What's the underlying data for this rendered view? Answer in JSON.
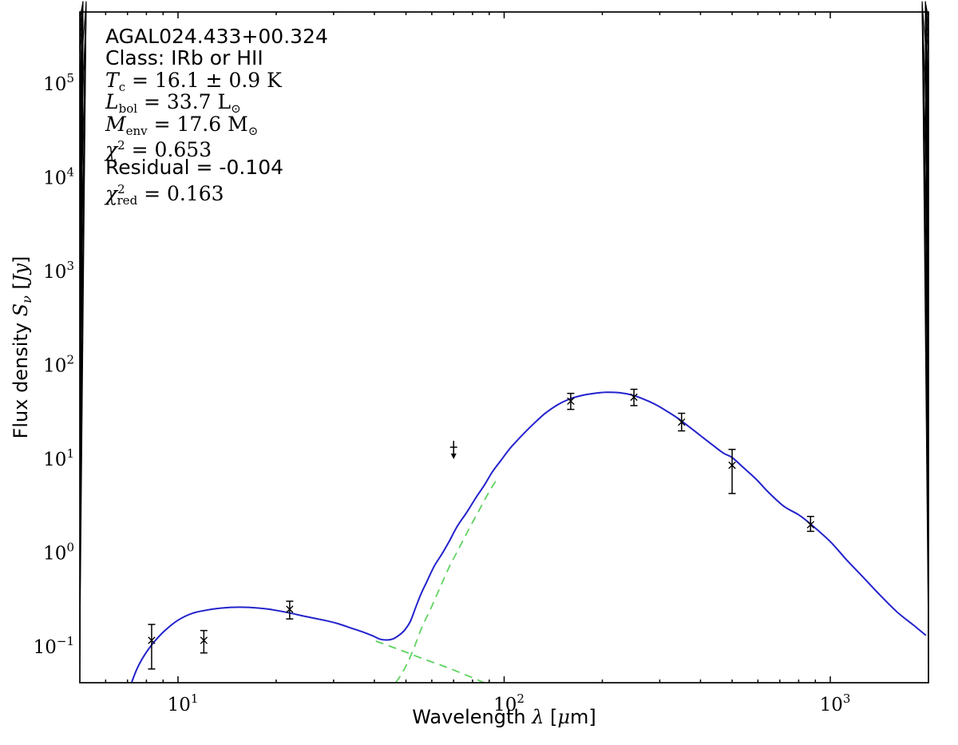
{
  "figure": {
    "background": "#ffffff",
    "frame_color": "#000000",
    "text_color": "#000000"
  },
  "chart_data": {
    "type": "line",
    "title": "",
    "xlabel": "Wavelength λ [μm]",
    "ylabel": "Flux density Sν [Jy]",
    "xlabel_parts": [
      {
        "t": "Wavelength ",
        "s": "p"
      },
      {
        "t": "λ",
        "s": "i"
      },
      {
        "t": " [",
        "s": "p"
      },
      {
        "t": "μ",
        "s": "i"
      },
      {
        "t": "m]",
        "s": "p"
      }
    ],
    "ylabel_parts": [
      {
        "t": "Flux density ",
        "s": "p"
      },
      {
        "t": "S",
        "s": "i"
      },
      {
        "t": "ν",
        "s": "isub"
      },
      {
        "t": " [",
        "s": "p"
      },
      {
        "t": "Jy",
        "s": "i"
      },
      {
        "t": "]",
        "s": "p"
      }
    ],
    "xscale": "log",
    "yscale": "log",
    "xlim": [
      5,
      2000
    ],
    "ylim": [
      0.0414,
      583000
    ],
    "x_major_ticks": [
      10,
      100,
      1000
    ],
    "y_major_ticks": [
      0.1,
      1,
      10,
      100,
      1000,
      10000,
      100000
    ],
    "grid": false,
    "legend": "none",
    "annotation_lines": [
      {
        "kind": "sans",
        "text": "AGAL024.433+00.324"
      },
      {
        "kind": "sans",
        "text": "Class: IRb or HII"
      },
      {
        "kind": "math",
        "var": "T",
        "sub": "c",
        "rhs": " = 16.1 ± 0.9 K"
      },
      {
        "kind": "math",
        "var": "L",
        "sub": "bol",
        "rhs": " = 33.7 L",
        "rhs_sub": "⊙"
      },
      {
        "kind": "math",
        "var": "M",
        "sub": "env",
        "rhs": " = 17.6 M",
        "rhs_sub": "⊙"
      },
      {
        "kind": "math",
        "var": "χ",
        "sup": "2",
        "rhs": " = 0.653"
      },
      {
        "kind": "sans",
        "text": "Residual = -0.104"
      },
      {
        "kind": "math",
        "var": "χ",
        "sup": "2",
        "sub": "red",
        "stacked": true,
        "rhs": " = 0.163"
      }
    ],
    "series": [
      {
        "name": "model-total",
        "label": "two-component model fit (total)",
        "color": "#2222cc",
        "dash": "none",
        "width": 2,
        "points": [
          [
            7.2,
            0.0414
          ],
          [
            7.5,
            0.059
          ],
          [
            7.9,
            0.082
          ],
          [
            8.4,
            0.11
          ],
          [
            9.1,
            0.148
          ],
          [
            10,
            0.192
          ],
          [
            11.1,
            0.228
          ],
          [
            12.8,
            0.252
          ],
          [
            14.5,
            0.263
          ],
          [
            16.5,
            0.263
          ],
          [
            18.9,
            0.252
          ],
          [
            21.5,
            0.233
          ],
          [
            24.5,
            0.211
          ],
          [
            28,
            0.192
          ],
          [
            31,
            0.176
          ],
          [
            34,
            0.158
          ],
          [
            37,
            0.143
          ],
          [
            39.5,
            0.131
          ],
          [
            41.5,
            0.121
          ],
          [
            43.5,
            0.118
          ],
          [
            45.5,
            0.121
          ],
          [
            47.5,
            0.132
          ],
          [
            49.5,
            0.15
          ],
          [
            51.5,
            0.185
          ],
          [
            53.5,
            0.26
          ],
          [
            55.5,
            0.36
          ],
          [
            58,
            0.5
          ],
          [
            61,
            0.72
          ],
          [
            64.5,
            0.98
          ],
          [
            68,
            1.35
          ],
          [
            72,
            1.95
          ],
          [
            77,
            2.75
          ],
          [
            82,
            3.9
          ],
          [
            87,
            5.3
          ],
          [
            92,
            7.3
          ],
          [
            98,
            9.8
          ],
          [
            104,
            12.9
          ],
          [
            110,
            16
          ],
          [
            117,
            20
          ],
          [
            125,
            25
          ],
          [
            134,
            31
          ],
          [
            146,
            38
          ],
          [
            158,
            43.5
          ],
          [
            172,
            47.5
          ],
          [
            187,
            50
          ],
          [
            205,
            51.5
          ],
          [
            225,
            51
          ],
          [
            245,
            48.5
          ],
          [
            266,
            44
          ],
          [
            290,
            38.5
          ],
          [
            315,
            32.5
          ],
          [
            340,
            27.4
          ],
          [
            370,
            22
          ],
          [
            400,
            17.8
          ],
          [
            435,
            14.2
          ],
          [
            470,
            11.6
          ],
          [
            500,
            10.4
          ],
          [
            540,
            8.2
          ],
          [
            590,
            6.2
          ],
          [
            650,
            4.35
          ],
          [
            720,
            3.15
          ],
          [
            800,
            2.55
          ],
          [
            868,
            2.05
          ],
          [
            1000,
            1.32
          ],
          [
            1120,
            0.85
          ],
          [
            1250,
            0.57
          ],
          [
            1400,
            0.375
          ],
          [
            1600,
            0.236
          ],
          [
            1800,
            0.17
          ],
          [
            1966,
            0.132
          ]
        ]
      },
      {
        "name": "cold-component",
        "label": "cold envelope component",
        "color": "#5fd35f",
        "dash": "10 7",
        "width": 1.8,
        "points": [
          [
            46.5,
            0.0414
          ],
          [
            48.6,
            0.052
          ],
          [
            50.5,
            0.067
          ],
          [
            52.8,
            0.095
          ],
          [
            55.9,
            0.16
          ],
          [
            60,
            0.27
          ],
          [
            64,
            0.45
          ],
          [
            68,
            0.72
          ],
          [
            72.5,
            1.1
          ],
          [
            78,
            1.8
          ],
          [
            84,
            2.9
          ],
          [
            90,
            4.5
          ],
          [
            95,
            6.1
          ]
        ]
      },
      {
        "name": "warm-component",
        "label": "warm component",
        "color": "#5fd35f",
        "dash": "10 7",
        "width": 1.8,
        "points": [
          [
            40.4,
            0.115
          ],
          [
            47.4,
            0.094
          ],
          [
            55.9,
            0.0754
          ],
          [
            66.6,
            0.0605
          ],
          [
            76.6,
            0.0498
          ],
          [
            86.9,
            0.0414
          ]
        ]
      }
    ],
    "data_points": [
      {
        "wavelength": 8.3,
        "flux": 0.117,
        "flux_lo": 0.058,
        "flux_hi": 0.173
      },
      {
        "wavelength": 12,
        "flux": 0.117,
        "flux_lo": 0.086,
        "flux_hi": 0.149
      },
      {
        "wavelength": 22,
        "flux": 0.251,
        "flux_lo": 0.198,
        "flux_hi": 0.306
      },
      {
        "wavelength": 160,
        "flux": 41.5,
        "flux_lo": 33.9,
        "flux_hi": 50.2
      },
      {
        "wavelength": 250,
        "flux": 45.7,
        "flux_lo": 37.2,
        "flux_hi": 55.5
      },
      {
        "wavelength": 350,
        "flux": 24.8,
        "flux_lo": 20.0,
        "flux_hi": 30.8
      },
      {
        "wavelength": 500,
        "flux": 8.6,
        "flux_lo": 4.3,
        "flux_hi": 12.7
      },
      {
        "wavelength": 870,
        "flux": 2.0,
        "flux_lo": 1.7,
        "flux_hi": 2.45
      }
    ],
    "upper_limits": [
      {
        "wavelength": 70,
        "flux": 13.4
      }
    ]
  }
}
